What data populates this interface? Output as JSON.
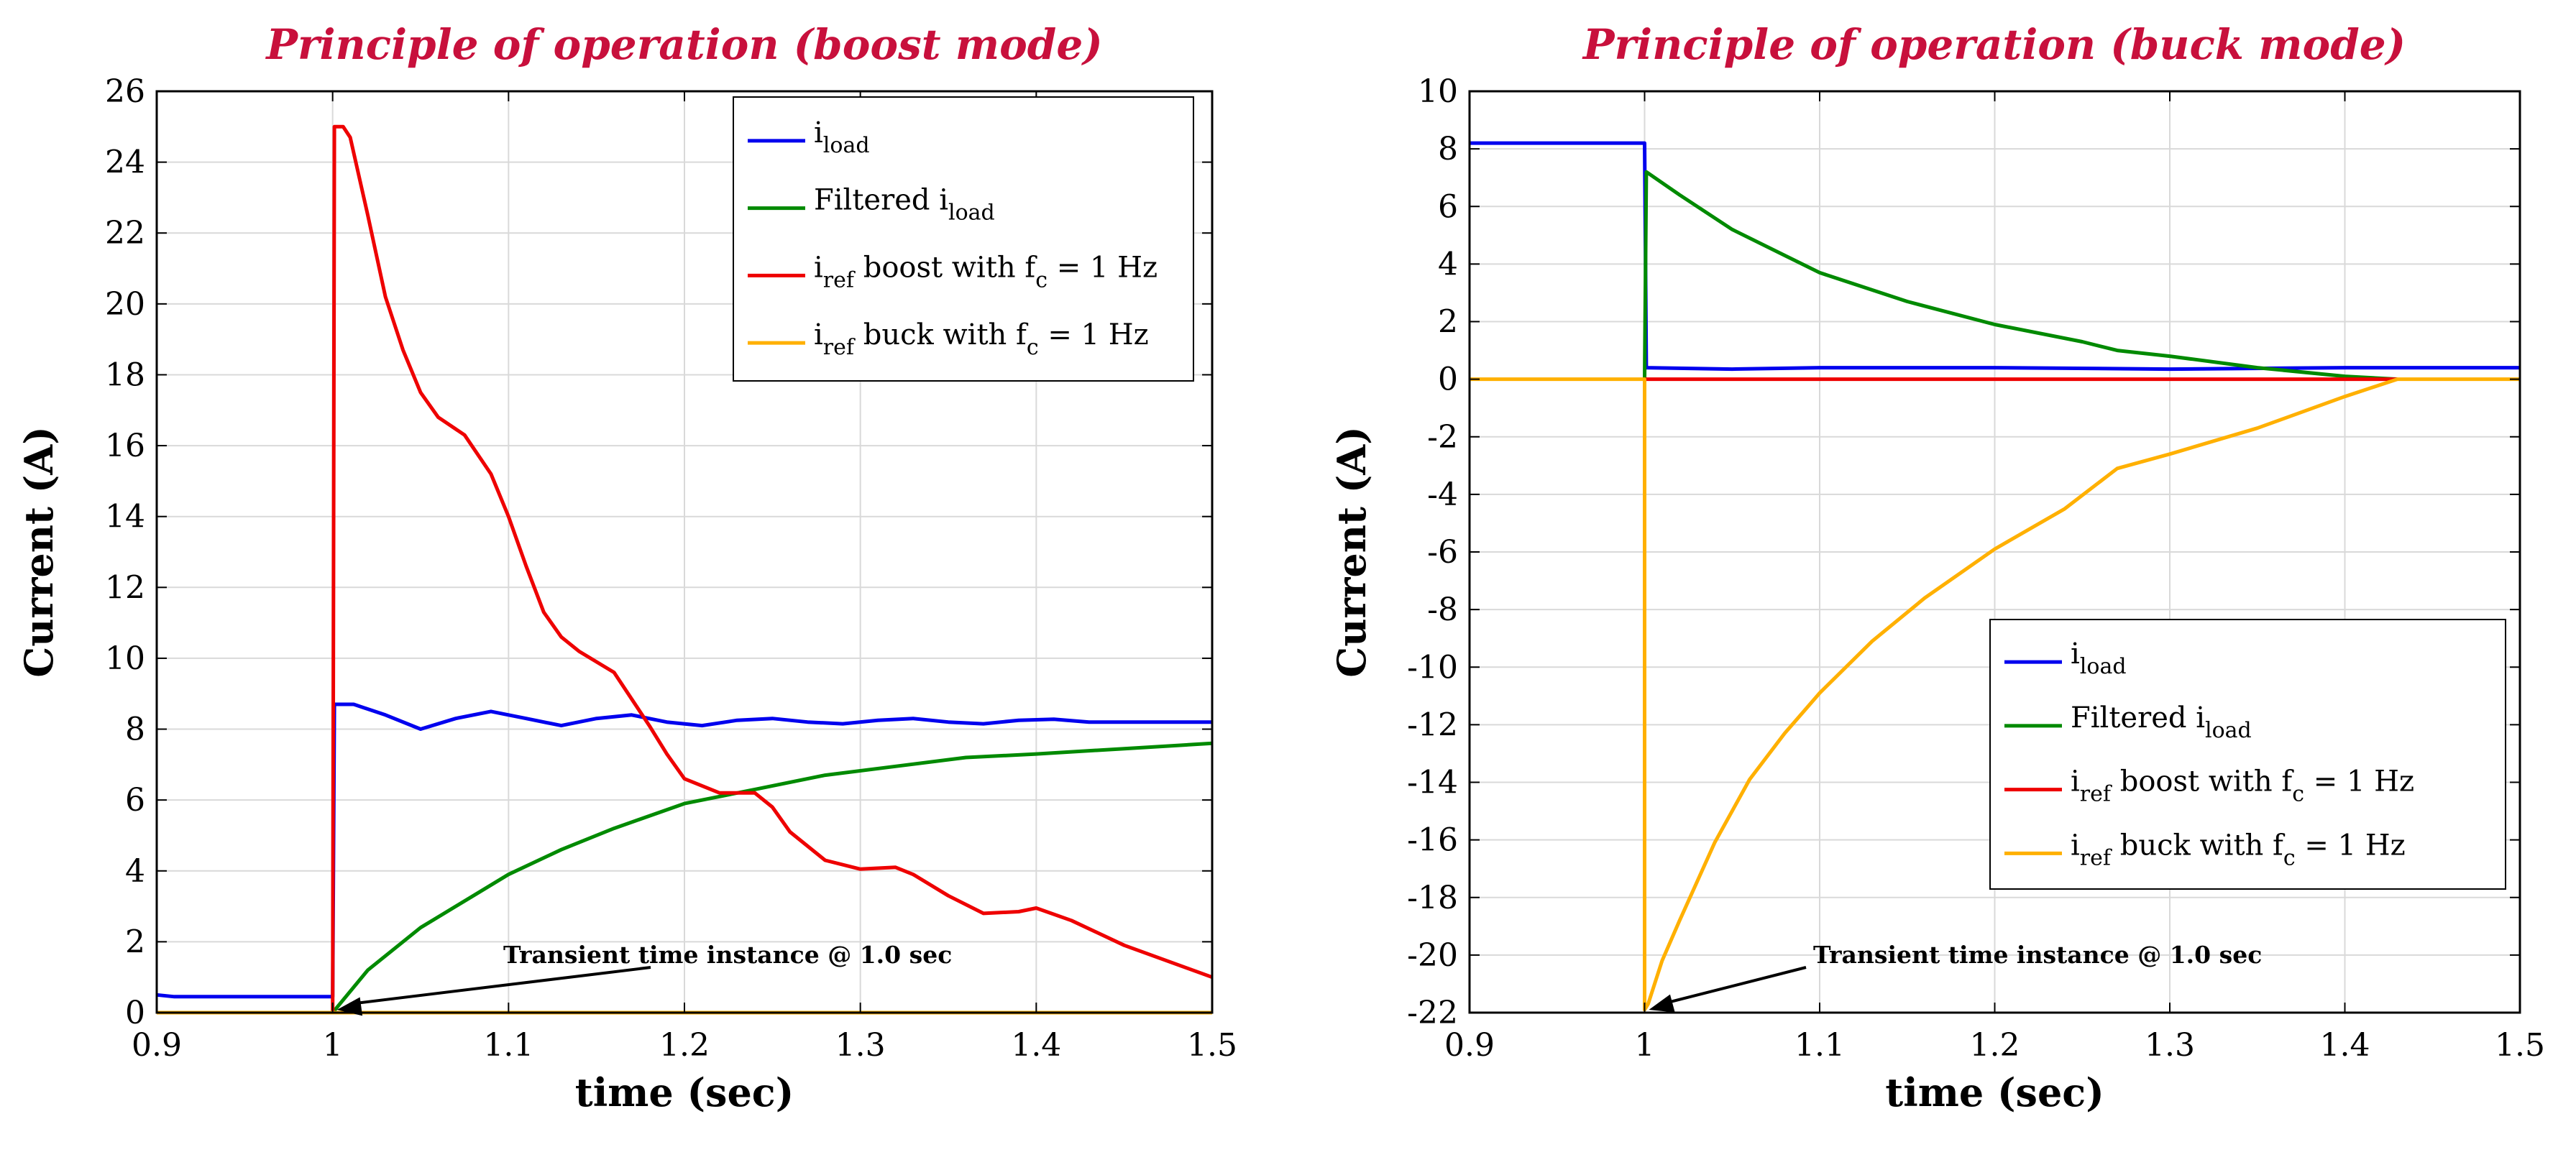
{
  "chart_data": [
    {
      "type": "line",
      "title": "Principle of operation (boost mode)",
      "xlabel": "time (sec)",
      "ylabel": "Current (A)",
      "xlim": [
        0.9,
        1.5
      ],
      "ylim": [
        0,
        26
      ],
      "xticks": [
        0.9,
        1,
        1.1,
        1.2,
        1.3,
        1.4,
        1.5
      ],
      "xtick_labels": [
        "0.9",
        "1",
        "1.1",
        "1.2",
        "1.3",
        "1.4",
        "1.5"
      ],
      "yticks": [
        0,
        2,
        4,
        6,
        8,
        10,
        12,
        14,
        16,
        18,
        20,
        22,
        24,
        26
      ],
      "ytick_labels": [
        "0",
        "2",
        "4",
        "6",
        "8",
        "10",
        "12",
        "14",
        "16",
        "18",
        "20",
        "22",
        "24",
        "26"
      ],
      "grid": true,
      "legend_position": "top-right",
      "annotation": {
        "text": "Transient time instance @ 1.0 sec",
        "x": 1.0,
        "y": 0
      },
      "series": [
        {
          "name_main": "i",
          "name_sub": "load",
          "name_tail": "",
          "color": "#0000ee",
          "x": [
            0.9,
            0.91,
            0.999,
            1.0,
            1.001,
            1.012,
            1.03,
            1.05,
            1.07,
            1.09,
            1.11,
            1.13,
            1.15,
            1.17,
            1.19,
            1.21,
            1.23,
            1.25,
            1.27,
            1.29,
            1.31,
            1.33,
            1.35,
            1.37,
            1.39,
            1.41,
            1.43,
            1.45,
            1.47,
            1.5
          ],
          "y": [
            0.5,
            0.45,
            0.45,
            0.45,
            8.7,
            8.7,
            8.4,
            8.0,
            8.3,
            8.5,
            8.3,
            8.1,
            8.3,
            8.4,
            8.2,
            8.1,
            8.25,
            8.3,
            8.2,
            8.15,
            8.25,
            8.3,
            8.2,
            8.15,
            8.25,
            8.28,
            8.2,
            8.2,
            8.2,
            8.2
          ]
        },
        {
          "name_main": "Filtered i",
          "name_sub": "load",
          "name_tail": "",
          "color": "#008a00",
          "x": [
            1.0,
            1.02,
            1.05,
            1.08,
            1.1,
            1.13,
            1.16,
            1.2,
            1.24,
            1.28,
            1.32,
            1.36,
            1.4,
            1.45,
            1.5
          ],
          "y": [
            0.0,
            1.2,
            2.4,
            3.3,
            3.9,
            4.6,
            5.2,
            5.9,
            6.3,
            6.7,
            6.95,
            7.2,
            7.3,
            7.45,
            7.6
          ]
        },
        {
          "name_main": "i",
          "name_sub": "ref",
          "name_tail": " boost with f_c = 1 Hz",
          "color": "#ee0000",
          "x": [
            0.9,
            0.999,
            1.0,
            1.001,
            1.006,
            1.01,
            1.02,
            1.03,
            1.04,
            1.05,
            1.06,
            1.075,
            1.09,
            1.1,
            1.11,
            1.12,
            1.13,
            1.14,
            1.16,
            1.18,
            1.19,
            1.2,
            1.22,
            1.24,
            1.25,
            1.26,
            1.28,
            1.3,
            1.32,
            1.33,
            1.35,
            1.37,
            1.39,
            1.4,
            1.42,
            1.45,
            1.5
          ],
          "y": [
            0.0,
            0.0,
            0.0,
            25.0,
            25.0,
            24.7,
            22.5,
            20.2,
            18.7,
            17.5,
            16.8,
            16.3,
            15.2,
            14.0,
            12.6,
            11.3,
            10.6,
            10.2,
            9.6,
            8.1,
            7.3,
            6.6,
            6.2,
            6.2,
            5.8,
            5.1,
            4.3,
            4.05,
            4.1,
            3.9,
            3.3,
            2.8,
            2.85,
            2.95,
            2.6,
            1.9,
            1.0
          ]
        },
        {
          "name_main": "i",
          "name_sub": "ref",
          "name_tail": " buck with f_c = 1 Hz",
          "color": "#ffb000",
          "x": [
            0.9,
            1.5
          ],
          "y": [
            0.0,
            0.0
          ]
        }
      ],
      "legend_labels": [
        [
          "i",
          "load",
          ""
        ],
        [
          "Filtered i",
          "load",
          ""
        ],
        [
          "i",
          "ref",
          " boost with f",
          "c",
          " = 1 Hz"
        ],
        [
          "i",
          "ref",
          " buck with f",
          "c",
          " = 1 Hz"
        ]
      ]
    },
    {
      "type": "line",
      "title": "Principle of operation (buck mode)",
      "xlabel": "time (sec)",
      "ylabel": "Current (A)",
      "xlim": [
        0.9,
        1.5
      ],
      "ylim": [
        -22,
        10
      ],
      "xticks": [
        0.9,
        1,
        1.1,
        1.2,
        1.3,
        1.4,
        1.5
      ],
      "xtick_labels": [
        "0.9",
        "1",
        "1.1",
        "1.2",
        "1.3",
        "1.4",
        "1.5"
      ],
      "yticks": [
        -22,
        -20,
        -18,
        -16,
        -14,
        -12,
        -10,
        -8,
        -6,
        -4,
        -2,
        0,
        2,
        4,
        6,
        8,
        10
      ],
      "ytick_labels": [
        "-22",
        "-20",
        "-18",
        "-16",
        "-14",
        "-12",
        "-10",
        "-8",
        "-6",
        "-4",
        "-2",
        "0",
        "2",
        "4",
        "6",
        "8",
        "10"
      ],
      "grid": true,
      "legend_position": "lower-right",
      "annotation": {
        "text": "Transient time instance @ 1.0 sec",
        "x": 1.0,
        "y": -22
      },
      "series": [
        {
          "name_main": "i",
          "name_sub": "load",
          "name_tail": "",
          "color": "#0000ee",
          "x": [
            0.9,
            0.999,
            1.0,
            1.001,
            1.05,
            1.1,
            1.2,
            1.3,
            1.4,
            1.5
          ],
          "y": [
            8.2,
            8.2,
            8.2,
            0.4,
            0.35,
            0.4,
            0.4,
            0.35,
            0.4,
            0.4
          ]
        },
        {
          "name_main": "Filtered i",
          "name_sub": "load",
          "name_tail": "",
          "color": "#008a00",
          "x": [
            1.0,
            1.001,
            1.02,
            1.05,
            1.08,
            1.1,
            1.15,
            1.2,
            1.25,
            1.27,
            1.3,
            1.35,
            1.4,
            1.43
          ],
          "y": [
            0.0,
            7.2,
            6.4,
            5.2,
            4.3,
            3.7,
            2.7,
            1.9,
            1.3,
            1.0,
            0.8,
            0.4,
            0.1,
            0.0
          ]
        },
        {
          "name_main": "i",
          "name_sub": "ref",
          "name_tail": " boost with f_c = 1 Hz",
          "color": "#ee0000",
          "x": [
            1.0,
            1.43
          ],
          "y": [
            0.0,
            0.0
          ]
        },
        {
          "name_main": "i",
          "name_sub": "ref",
          "name_tail": " buck with f_c = 1 Hz",
          "color": "#ffb000",
          "x": [
            0.9,
            1.0,
            1.0,
            1.002,
            1.01,
            1.02,
            1.04,
            1.06,
            1.08,
            1.1,
            1.13,
            1.16,
            1.2,
            1.24,
            1.27,
            1.3,
            1.35,
            1.4,
            1.43,
            1.5
          ],
          "y": [
            0.0,
            0.0,
            -21.9,
            -21.7,
            -20.2,
            -18.8,
            -16.1,
            -13.9,
            -12.3,
            -10.9,
            -9.1,
            -7.6,
            -5.9,
            -4.5,
            -3.1,
            -2.6,
            -1.7,
            -0.6,
            0.0,
            0.0
          ]
        }
      ],
      "legend_labels": [
        [
          "i",
          "load",
          ""
        ],
        [
          "Filtered i",
          "load",
          ""
        ],
        [
          "i",
          "ref",
          " boost with f",
          "c",
          " = 1 Hz"
        ],
        [
          "i",
          "ref",
          " buck with f",
          "c",
          " = 1 Hz"
        ]
      ]
    }
  ],
  "colors": {
    "title": "#c8103c",
    "grid": "#d9d9d9"
  }
}
